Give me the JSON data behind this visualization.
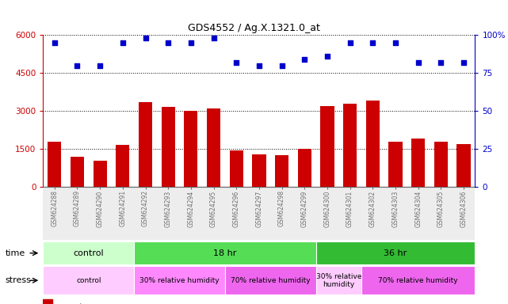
{
  "title": "GDS4552 / Ag.X.1321.0_at",
  "samples": [
    "GSM624288",
    "GSM624289",
    "GSM624290",
    "GSM624291",
    "GSM624292",
    "GSM624293",
    "GSM624294",
    "GSM624295",
    "GSM624296",
    "GSM624297",
    "GSM624298",
    "GSM624299",
    "GSM624300",
    "GSM624301",
    "GSM624302",
    "GSM624303",
    "GSM624304",
    "GSM624305",
    "GSM624306"
  ],
  "counts": [
    1800,
    1200,
    1050,
    1650,
    3350,
    3150,
    3000,
    3100,
    1450,
    1300,
    1250,
    1500,
    3200,
    3300,
    3400,
    1800,
    1900,
    1800,
    1700
  ],
  "percentile_ranks_pct": [
    95,
    80,
    80,
    95,
    98,
    95,
    95,
    98,
    82,
    80,
    80,
    84,
    86,
    95,
    95,
    95,
    82,
    82,
    82
  ],
  "ylim_left": [
    0,
    6000
  ],
  "ylim_right": [
    0,
    100
  ],
  "yticks_left": [
    0,
    1500,
    3000,
    4500,
    6000
  ],
  "ytick_labels_left": [
    "0",
    "1500",
    "3000",
    "4500",
    "6000"
  ],
  "yticks_right": [
    0,
    25,
    50,
    75,
    100
  ],
  "ytick_labels_right": [
    "0",
    "25",
    "50",
    "75",
    "100%"
  ],
  "bar_color": "#cc0000",
  "dot_color": "#0000cc",
  "bg_color": "#ffffff",
  "time_groups": [
    {
      "text": "control",
      "start": 0,
      "end": 4,
      "color": "#ccffcc"
    },
    {
      "text": "18 hr",
      "start": 4,
      "end": 12,
      "color": "#55dd55"
    },
    {
      "text": "36 hr",
      "start": 12,
      "end": 19,
      "color": "#33bb33"
    }
  ],
  "stress_groups": [
    {
      "text": "control",
      "start": 0,
      "end": 4,
      "color": "#ffccff"
    },
    {
      "text": "30% relative humidity",
      "start": 4,
      "end": 8,
      "color": "#ff88ff"
    },
    {
      "text": "70% relative humidity",
      "start": 8,
      "end": 12,
      "color": "#ee66ee"
    },
    {
      "text": "30% relative\nhumidity",
      "start": 12,
      "end": 14,
      "color": "#ffccff"
    },
    {
      "text": "70% relative humidity",
      "start": 14,
      "end": 19,
      "color": "#ee66ee"
    }
  ]
}
